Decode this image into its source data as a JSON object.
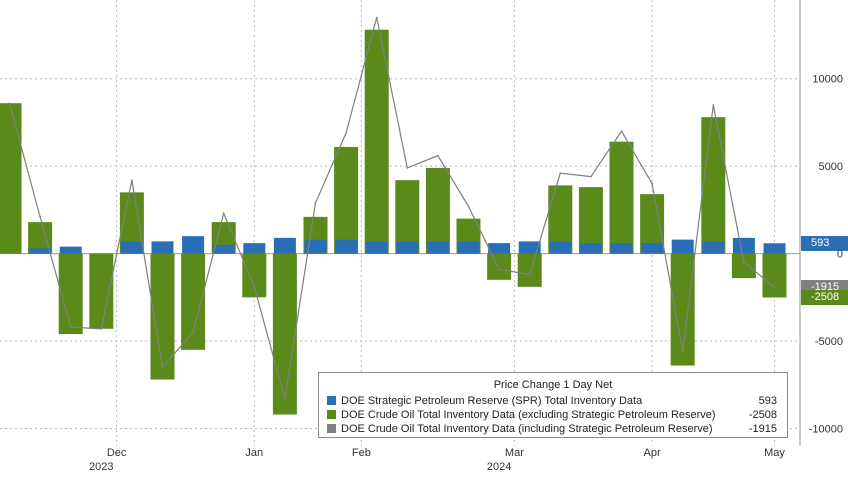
{
  "chart_data": {
    "type": "bar",
    "title": "",
    "xlabel": "",
    "ylabel": "",
    "ylim": [
      -11000,
      14500
    ],
    "yticks": [
      -10000,
      -5000,
      0,
      5000,
      10000
    ],
    "grid": true,
    "x_labels": [
      {
        "label": "Dec",
        "index": 3.5
      },
      {
        "label": "Jan",
        "index": 8
      },
      {
        "label": "Feb",
        "index": 11.5
      },
      {
        "label": "Mar",
        "index": 16.5
      },
      {
        "label": "Apr",
        "index": 21
      },
      {
        "label": "May",
        "index": 25
      }
    ],
    "year_labels": [
      {
        "label": "2023",
        "index": 3
      },
      {
        "label": "2024",
        "index": 16
      }
    ],
    "series": [
      {
        "name": "DOE Crude Oil Total Inventory Data (excluding Strategic Petroleum Reserve)",
        "color": "#5a8a1a",
        "values": [
          8600,
          1800,
          -4600,
          -4300,
          3500,
          -7200,
          -5500,
          1800,
          -2500,
          -9200,
          2100,
          6100,
          12800,
          4200,
          4900,
          2000,
          -1500,
          -1900,
          3900,
          3800,
          6400,
          3400,
          -6400,
          7800,
          -1400,
          -2508
        ]
      },
      {
        "name": "DOE Strategic Petroleum Reserve (SPR) Total Inventory Data",
        "color": "#2a6fb6",
        "values": [
          0,
          300,
          400,
          0,
          700,
          700,
          1000,
          500,
          600,
          900,
          800,
          800,
          700,
          700,
          700,
          700,
          600,
          700,
          700,
          600,
          600,
          600,
          800,
          700,
          900,
          593
        ]
      },
      {
        "name": "DOE Crude Oil Total Inventory Data (including Strategic Petroleum Reserve)",
        "color": "#7f7f7f",
        "values": [
          8600,
          2100,
          -4200,
          -4300,
          4200,
          -6500,
          -4500,
          2300,
          -1900,
          -8300,
          2900,
          6900,
          13500,
          4900,
          5600,
          2700,
          -900,
          -1200,
          4600,
          4400,
          7000,
          4000,
          -5600,
          8500,
          -500,
          -1915
        ]
      }
    ],
    "legend": {
      "title": "Price Change 1 Day Net",
      "placement": "bottom-right",
      "entries": [
        {
          "label": "DOE Strategic Petroleum Reserve (SPR) Total Inventory Data",
          "value": "593",
          "color": "#2a6fb6"
        },
        {
          "label": "DOE Crude Oil Total Inventory Data (excluding Strategic Petroleum Reserve)",
          "value": "-2508",
          "color": "#5a8a1a"
        },
        {
          "label": "DOE Crude Oil Total Inventory Data (including Strategic Petroleum Reserve)",
          "value": "-1915",
          "color": "#7f7f7f"
        }
      ]
    },
    "last_value_badges": [
      {
        "value": 593,
        "label": "593",
        "color": "#2a6fb6"
      },
      {
        "value": -1915,
        "label": "-1915",
        "color": "#7f7f7f"
      },
      {
        "value": -2508,
        "label": "-2508",
        "color": "#5a8a1a"
      }
    ]
  }
}
